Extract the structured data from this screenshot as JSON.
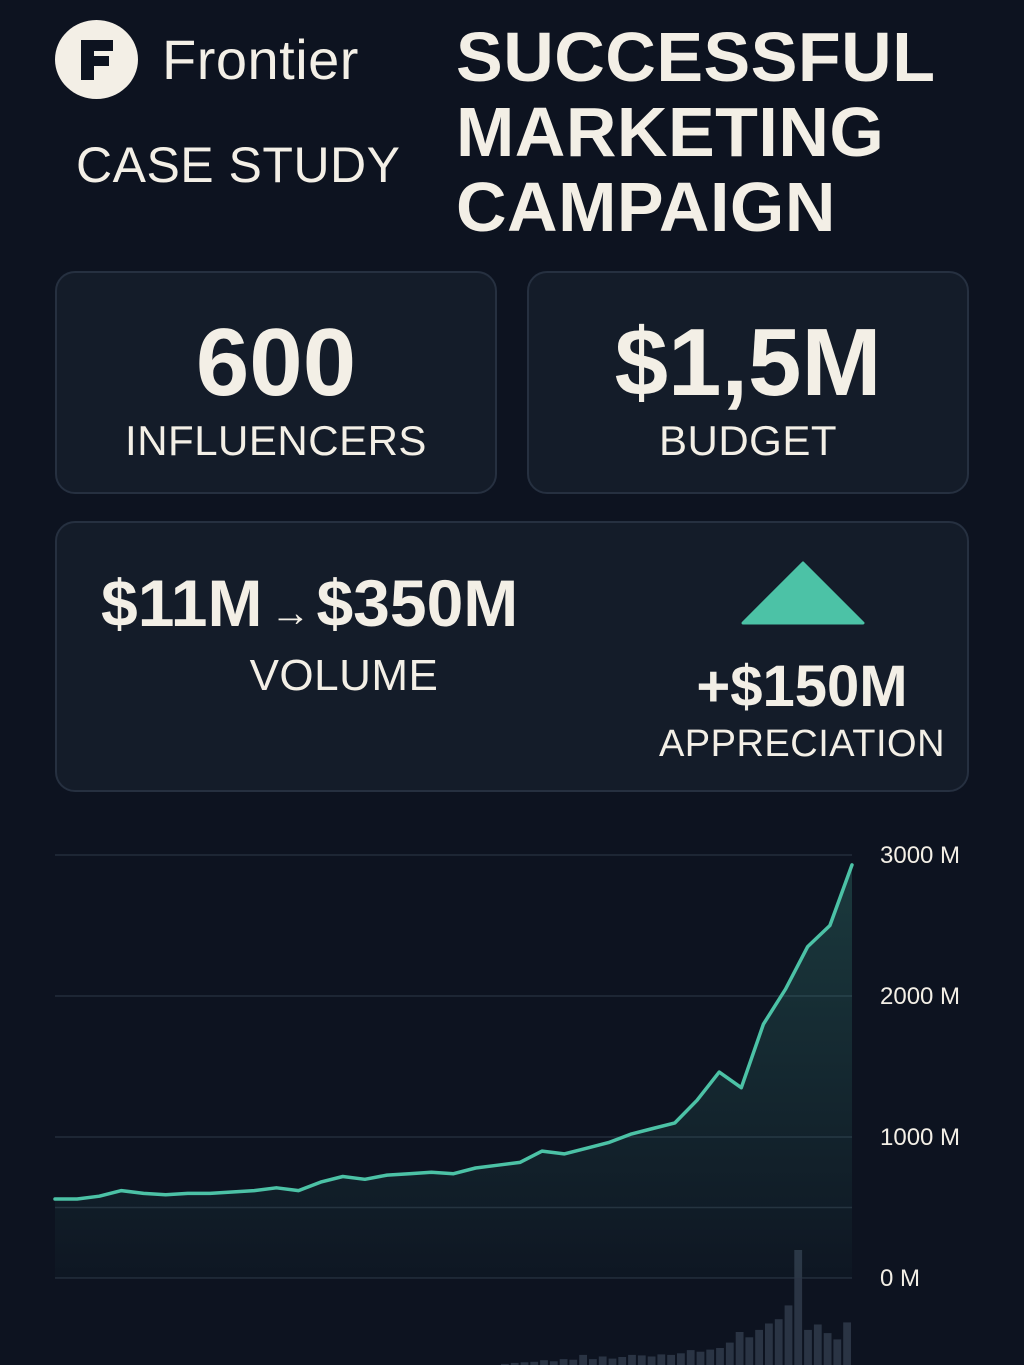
{
  "brand": {
    "logo_letter": "F",
    "name": "Frontier"
  },
  "subtitle": "CASE STUDY",
  "headline": [
    "SUCCESSFUL",
    "MARKETING",
    "CAMPAIGN"
  ],
  "stats": {
    "influencers": {
      "value": "600",
      "label": "INFLUENCERS"
    },
    "budget": {
      "value": "$1,5M",
      "label": "BUDGET"
    },
    "volume": {
      "from": "$11M",
      "arrow": "→",
      "to": "$350M",
      "label": "VOLUME"
    },
    "appreciation": {
      "value": "+$150M",
      "label": "APPRECIATION"
    }
  },
  "colors": {
    "background": "#0d1320",
    "card": "#141c29",
    "accent": "#4cc2a6",
    "text": "#f3efe6"
  },
  "icons": {
    "trend": "up-triangle-icon"
  },
  "chart_data": {
    "type": "line",
    "title": "",
    "xlabel": "",
    "ylabel": "",
    "ylim": [
      0,
      3000
    ],
    "y_ticks": [
      0,
      1000,
      2000,
      3000
    ],
    "y_tick_labels": [
      "0 M",
      "1000 M",
      "2000 M",
      "3000 M"
    ],
    "y_axis_side": "right",
    "grid": true,
    "legend": "none",
    "series": [
      {
        "values": [
          560,
          560,
          580,
          620,
          600,
          590,
          600,
          600,
          610,
          620,
          640,
          620,
          680,
          720,
          700,
          730,
          740,
          750,
          740,
          780,
          800,
          820,
          900,
          880,
          920,
          960,
          1020,
          1060,
          1100,
          1260,
          1460,
          1350,
          1800,
          2050,
          2350,
          2500,
          2930
        ]
      }
    ],
    "volume_bars": {
      "values": [
        10,
        20,
        25,
        30,
        45,
        35,
        55,
        50,
        95,
        55,
        80,
        60,
        75,
        95,
        90,
        80,
        100,
        95,
        110,
        140,
        125,
        145,
        160,
        210,
        310,
        260,
        330,
        390,
        430,
        560,
        1080,
        330,
        380,
        300,
        240,
        400
      ]
    }
  }
}
